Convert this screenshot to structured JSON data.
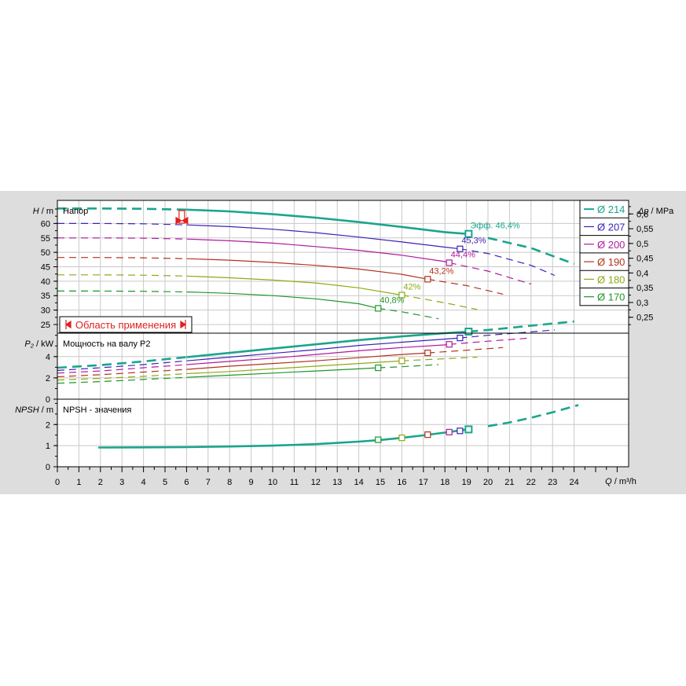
{
  "colors": {
    "panel_bg": "#dddddd",
    "plot_bg": "#ffffff",
    "grid": "#c8c8c8",
    "axis": "#000000",
    "range_marker": "#e02020"
  },
  "chart_data": {
    "type": "line",
    "x_axis": {
      "label_symbol": "Q",
      "label_unit": " / m³/h",
      "range": [
        0,
        26
      ],
      "ticks": [
        0,
        1,
        2,
        3,
        4,
        5,
        6,
        7,
        8,
        9,
        10,
        11,
        12,
        13,
        14,
        15,
        16,
        17,
        18,
        19,
        20,
        21,
        22,
        23,
        24
      ]
    },
    "legend": {
      "position": "right",
      "entries": [
        {
          "label": "Ø 214",
          "color": "#1aa58c"
        },
        {
          "label": "Ø 207",
          "color": "#3c22b4"
        },
        {
          "label": "Ø 200",
          "color": "#b01aa0"
        },
        {
          "label": "Ø 190",
          "color": "#b4321e"
        },
        {
          "label": "Ø 180",
          "color": "#8caa14"
        },
        {
          "label": "Ø 170",
          "color": "#1e9628"
        }
      ]
    },
    "range_label": "Область применения",
    "range_marker_q": 5.8,
    "panels": [
      {
        "id": "head",
        "title": "Напор",
        "y_symbol": "H",
        "y_unit": " / m",
        "ylim": [
          22,
          68
        ],
        "yticks": [
          25,
          30,
          35,
          40,
          45,
          50,
          55,
          60
        ],
        "y2_symbol": "Δp",
        "y2_unit": " / MPa",
        "y2_ticks": [
          "0,25",
          "0,3",
          "0,35",
          "0,4",
          "0,45",
          "0,5",
          "0,55",
          "0,6"
        ],
        "y2_values": [
          0.25,
          0.3,
          0.35,
          0.4,
          0.45,
          0.5,
          0.55,
          0.6
        ],
        "series": [
          {
            "color": "#1aa58c",
            "bold": true,
            "dash_to": 6,
            "end": 24,
            "points": [
              [
                0,
                65.2
              ],
              [
                2,
                65.2
              ],
              [
                4,
                65.1
              ],
              [
                6,
                64.8
              ],
              [
                8,
                64.2
              ],
              [
                10,
                63.2
              ],
              [
                12,
                62
              ],
              [
                14,
                60.5
              ],
              [
                16,
                58.8
              ],
              [
                18,
                57
              ],
              [
                19,
                56.4
              ],
              [
                20,
                55
              ],
              [
                22,
                51.5
              ],
              [
                24,
                46
              ]
            ],
            "bep": [
              19.1,
              56.4
            ],
            "eff": "Эфф.  46,4%"
          },
          {
            "color": "#3c22b4",
            "bold": false,
            "dash_to": 6,
            "end": 23.1,
            "points": [
              [
                0,
                60
              ],
              [
                2,
                60
              ],
              [
                4,
                59.9
              ],
              [
                6,
                59.5
              ],
              [
                8,
                58.9
              ],
              [
                10,
                58
              ],
              [
                12,
                56.8
              ],
              [
                14,
                55.3
              ],
              [
                16,
                53.6
              ],
              [
                18,
                51.8
              ],
              [
                18.7,
                51.2
              ],
              [
                20,
                49.6
              ],
              [
                22,
                45.5
              ],
              [
                23.1,
                42
              ]
            ],
            "bep": [
              18.7,
              51.2
            ],
            "eff": "45,3%"
          },
          {
            "color": "#b01aa0",
            "bold": false,
            "dash_to": 6,
            "end": 22.0,
            "points": [
              [
                0,
                55
              ],
              [
                2,
                55
              ],
              [
                4,
                54.9
              ],
              [
                6,
                54.6
              ],
              [
                8,
                54
              ],
              [
                10,
                53.2
              ],
              [
                12,
                52
              ],
              [
                14,
                50.7
              ],
              [
                16,
                49
              ],
              [
                18,
                46.8
              ],
              [
                18.2,
                46.4
              ],
              [
                20,
                43.5
              ],
              [
                22,
                39
              ]
            ],
            "bep": [
              18.2,
              46.4
            ],
            "eff": "44,4%"
          },
          {
            "color": "#b4321e",
            "bold": false,
            "dash_to": 6,
            "end": 20.7,
            "points": [
              [
                0,
                48.2
              ],
              [
                2,
                48.2
              ],
              [
                4,
                48.1
              ],
              [
                6,
                47.8
              ],
              [
                8,
                47.3
              ],
              [
                10,
                46.5
              ],
              [
                12,
                45.5
              ],
              [
                14,
                44.2
              ],
              [
                16,
                42.4
              ],
              [
                17.2,
                40.7
              ],
              [
                19,
                38.5
              ],
              [
                20.7,
                35.5
              ]
            ],
            "bep": [
              17.2,
              40.7
            ],
            "eff": "43,2%"
          },
          {
            "color": "#8caa14",
            "bold": false,
            "dash_to": 6,
            "end": 19.5,
            "points": [
              [
                0,
                42.2
              ],
              [
                2,
                42.2
              ],
              [
                4,
                42.1
              ],
              [
                6,
                41.8
              ],
              [
                8,
                41.2
              ],
              [
                10,
                40.4
              ],
              [
                12,
                39.4
              ],
              [
                14,
                37.7
              ],
              [
                16,
                35.2
              ],
              [
                18,
                32.5
              ],
              [
                19.5,
                30.2
              ]
            ],
            "bep": [
              16,
              35.2
            ],
            "eff": "42%"
          },
          {
            "color": "#1e9628",
            "bold": false,
            "dash_to": 6,
            "end": 17.7,
            "points": [
              [
                0,
                36.6
              ],
              [
                2,
                36.6
              ],
              [
                4,
                36.5
              ],
              [
                6,
                36.3
              ],
              [
                8,
                35.8
              ],
              [
                10,
                35
              ],
              [
                12,
                33.9
              ],
              [
                14,
                32.2
              ],
              [
                14.9,
                30.6
              ],
              [
                16,
                29.4
              ],
              [
                17.7,
                27
              ]
            ],
            "bep": [
              14.9,
              30.6
            ],
            "eff": "40,8%"
          }
        ]
      },
      {
        "id": "power",
        "title": "Мощность на валу P2",
        "y_symbol": "P₂",
        "y_unit": " / kW",
        "ylim": [
          0,
          6.2
        ],
        "yticks": [
          0,
          2,
          4
        ],
        "series": [
          {
            "color": "#1aa58c",
            "bold": true,
            "dash_to": 6,
            "end": 24,
            "points": [
              [
                0,
                2.95
              ],
              [
                2,
                3.2
              ],
              [
                4,
                3.55
              ],
              [
                6,
                3.95
              ],
              [
                8,
                4.35
              ],
              [
                10,
                4.75
              ],
              [
                12,
                5.15
              ],
              [
                14,
                5.55
              ],
              [
                16,
                5.9
              ],
              [
                18,
                6.2
              ],
              [
                19.1,
                6.35
              ],
              [
                20,
                6.5
              ],
              [
                22,
                6.9
              ],
              [
                24,
                7.3
              ]
            ],
            "bep": [
              19.1,
              6.35
            ]
          },
          {
            "color": "#3c22b4",
            "bold": false,
            "dash_to": 6,
            "end": 23.1,
            "points": [
              [
                0,
                2.7
              ],
              [
                2,
                2.95
              ],
              [
                4,
                3.25
              ],
              [
                6,
                3.6
              ],
              [
                8,
                3.95
              ],
              [
                10,
                4.3
              ],
              [
                12,
                4.65
              ],
              [
                14,
                5.05
              ],
              [
                16,
                5.35
              ],
              [
                18,
                5.65
              ],
              [
                18.7,
                5.75
              ],
              [
                20,
                6
              ],
              [
                23.1,
                6.5
              ]
            ],
            "bep": [
              18.7,
              5.75
            ]
          },
          {
            "color": "#b01aa0",
            "bold": false,
            "dash_to": 6,
            "end": 22.0,
            "points": [
              [
                0,
                2.45
              ],
              [
                2,
                2.65
              ],
              [
                4,
                2.95
              ],
              [
                6,
                3.25
              ],
              [
                8,
                3.55
              ],
              [
                10,
                3.85
              ],
              [
                12,
                4.2
              ],
              [
                14,
                4.55
              ],
              [
                16,
                4.85
              ],
              [
                18,
                5.1
              ],
              [
                18.2,
                5.15
              ],
              [
                20,
                5.45
              ],
              [
                22,
                5.75
              ]
            ],
            "bep": [
              18.2,
              5.15
            ]
          },
          {
            "color": "#b4321e",
            "bold": false,
            "dash_to": 6,
            "end": 20.7,
            "points": [
              [
                0,
                2.1
              ],
              [
                2,
                2.3
              ],
              [
                4,
                2.55
              ],
              [
                6,
                2.8
              ],
              [
                8,
                3.1
              ],
              [
                10,
                3.35
              ],
              [
                12,
                3.6
              ],
              [
                14,
                3.9
              ],
              [
                16,
                4.2
              ],
              [
                17.2,
                4.35
              ],
              [
                19,
                4.6
              ],
              [
                20.7,
                4.85
              ]
            ],
            "bep": [
              17.2,
              4.35
            ]
          },
          {
            "color": "#8caa14",
            "bold": false,
            "dash_to": 6,
            "end": 19.5,
            "points": [
              [
                0,
                1.8
              ],
              [
                2,
                1.95
              ],
              [
                4,
                2.15
              ],
              [
                6,
                2.4
              ],
              [
                8,
                2.6
              ],
              [
                10,
                2.85
              ],
              [
                12,
                3.1
              ],
              [
                14,
                3.35
              ],
              [
                16,
                3.6
              ],
              [
                18,
                3.8
              ],
              [
                19.5,
                3.95
              ]
            ],
            "bep": [
              16,
              3.6
            ]
          },
          {
            "color": "#1e9628",
            "bold": false,
            "dash_to": 6,
            "end": 17.7,
            "points": [
              [
                0,
                1.5
              ],
              [
                2,
                1.65
              ],
              [
                4,
                1.85
              ],
              [
                6,
                2.05
              ],
              [
                8,
                2.25
              ],
              [
                10,
                2.45
              ],
              [
                12,
                2.65
              ],
              [
                14,
                2.85
              ],
              [
                14.9,
                2.95
              ],
              [
                16,
                3.05
              ],
              [
                17.7,
                3.25
              ]
            ],
            "bep": [
              14.9,
              2.95
            ]
          }
        ]
      },
      {
        "id": "npsh",
        "title": "NPSH - значения",
        "y_symbol": "NPSH",
        "y_unit": " / m",
        "ylim": [
          0,
          3.2
        ],
        "yticks": [
          0,
          1,
          2
        ],
        "series": [
          {
            "color": "#1aa58c",
            "bold": true,
            "dash_from": 19.2,
            "start": 1.9,
            "end": 24.2,
            "points": [
              [
                1.9,
                0.91
              ],
              [
                4,
                0.92
              ],
              [
                6,
                0.93
              ],
              [
                8,
                0.96
              ],
              [
                10,
                1.0
              ],
              [
                12,
                1.07
              ],
              [
                14,
                1.19
              ],
              [
                15,
                1.27
              ],
              [
                16,
                1.37
              ],
              [
                17,
                1.49
              ],
              [
                18,
                1.62
              ],
              [
                19,
                1.76
              ],
              [
                20,
                1.92
              ],
              [
                21,
                2.1
              ],
              [
                22,
                2.32
              ],
              [
                23,
                2.58
              ],
              [
                24.2,
                2.92
              ]
            ]
          }
        ],
        "markers": [
          {
            "q": 14.9,
            "v": 1.28,
            "color": "#1e9628"
          },
          {
            "q": 16.0,
            "v": 1.37,
            "color": "#8caa14"
          },
          {
            "q": 17.2,
            "v": 1.52,
            "color": "#b4321e"
          },
          {
            "q": 18.2,
            "v": 1.64,
            "color": "#b01aa0"
          },
          {
            "q": 18.7,
            "v": 1.7,
            "color": "#3c22b4"
          },
          {
            "q": 19.1,
            "v": 1.77,
            "color": "#1aa58c"
          }
        ]
      }
    ]
  }
}
